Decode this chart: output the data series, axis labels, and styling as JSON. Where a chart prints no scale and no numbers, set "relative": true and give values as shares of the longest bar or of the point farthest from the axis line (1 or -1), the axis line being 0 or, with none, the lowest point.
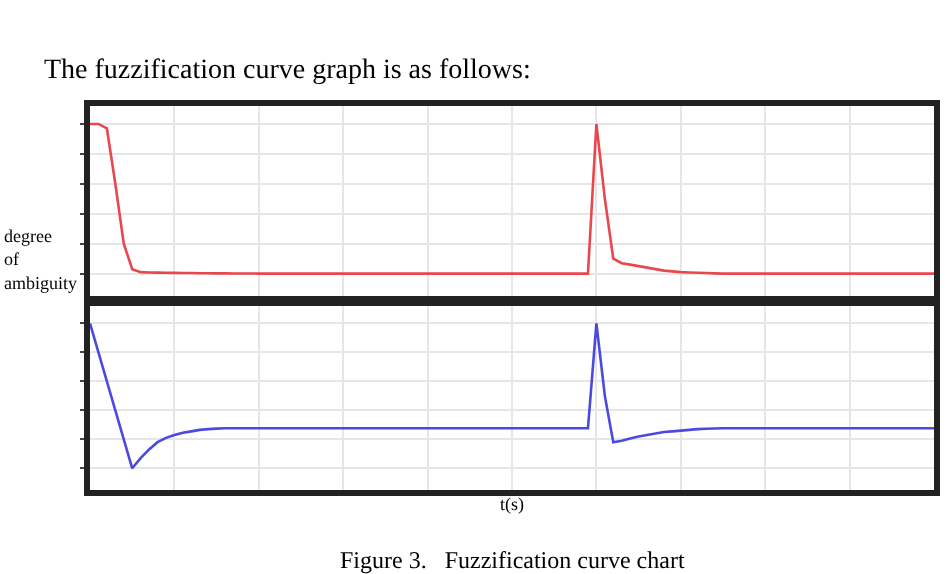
{
  "chart_data": [
    {
      "type": "line",
      "title": "The fuzzification curve graph is as follows:",
      "ylabel": "degree\nof\nambiguity",
      "relative": true,
      "grid": true,
      "tick_labels": false,
      "categories": [
        null,
        null,
        null,
        null,
        null,
        null,
        null,
        null,
        null,
        null,
        null,
        null,
        null,
        null,
        null,
        null,
        null,
        null,
        null,
        null,
        null,
        null,
        null,
        null,
        null,
        null,
        null,
        null,
        null,
        null,
        null,
        null,
        null,
        null,
        null,
        null,
        null,
        null,
        null,
        null,
        null,
        null,
        null,
        null,
        null,
        null,
        null,
        null,
        null,
        null,
        null,
        null,
        null,
        null,
        null,
        null,
        null,
        null,
        null,
        null,
        null,
        null,
        null,
        null,
        null,
        null,
        null,
        null,
        null,
        null,
        null,
        null,
        null,
        null,
        null,
        null,
        null,
        null,
        null,
        null,
        null,
        null,
        null,
        null,
        null,
        null,
        null,
        null,
        null,
        null,
        null,
        null,
        null,
        null,
        null,
        null,
        null,
        null,
        null,
        null,
        null
      ],
      "series": [
        {
          "color": "#e8474f",
          "values": [
            1,
            1,
            0.97,
            0.6,
            0.2,
            0.03,
            0.01,
            0.008,
            0.007,
            0.006,
            0.005,
            0.004,
            0.004,
            0.003,
            0.003,
            0.002,
            0.002,
            0.001,
            0.001,
            0.001,
            0,
            0,
            0,
            0,
            0,
            0,
            0,
            0,
            0,
            0,
            0,
            0,
            0,
            0,
            0,
            0,
            0,
            0,
            0,
            0,
            0,
            0,
            0,
            0,
            0,
            0,
            0,
            0,
            0,
            0,
            0,
            0,
            0,
            0,
            0,
            0,
            0,
            0,
            0,
            0,
            1,
            0.5,
            0.1,
            0.07,
            0.06,
            0.05,
            0.04,
            0.03,
            0.02,
            0.015,
            0.01,
            0.008,
            0.006,
            0.004,
            0.002,
            0,
            0,
            0,
            0,
            0,
            0,
            0,
            0,
            0,
            0,
            0,
            0,
            0,
            0,
            0,
            0,
            0,
            0,
            0,
            0,
            0,
            0,
            0,
            0,
            0,
            0
          ]
        }
      ]
    },
    {
      "type": "line",
      "xlabel": "t(s)",
      "relative": true,
      "grid": true,
      "tick_labels": false,
      "categories": [
        null,
        null,
        null,
        null,
        null,
        null,
        null,
        null,
        null,
        null,
        null,
        null,
        null,
        null,
        null,
        null,
        null,
        null,
        null,
        null,
        null,
        null,
        null,
        null,
        null,
        null,
        null,
        null,
        null,
        null,
        null,
        null,
        null,
        null,
        null,
        null,
        null,
        null,
        null,
        null,
        null,
        null,
        null,
        null,
        null,
        null,
        null,
        null,
        null,
        null,
        null,
        null,
        null,
        null,
        null,
        null,
        null,
        null,
        null,
        null,
        null,
        null,
        null,
        null,
        null,
        null,
        null,
        null,
        null,
        null,
        null,
        null,
        null,
        null,
        null,
        null,
        null,
        null,
        null,
        null,
        null,
        null,
        null,
        null,
        null,
        null,
        null,
        null,
        null,
        null,
        null,
        null,
        null,
        null,
        null,
        null,
        null,
        null,
        null,
        null,
        null
      ],
      "annotations": [
        "Figure 3.   Fuzzification curve chart"
      ],
      "series": [
        {
          "color": "#4a4ae0",
          "values": [
            1,
            0.8,
            0.6,
            0.4,
            0.2,
            0,
            0.07,
            0.13,
            0.18,
            0.21,
            0.23,
            0.245,
            0.255,
            0.265,
            0.27,
            0.274,
            0.276,
            0.276,
            0.276,
            0.276,
            0.276,
            0.276,
            0.276,
            0.276,
            0.276,
            0.276,
            0.276,
            0.276,
            0.276,
            0.276,
            0.276,
            0.276,
            0.276,
            0.276,
            0.276,
            0.276,
            0.276,
            0.276,
            0.276,
            0.276,
            0.276,
            0.276,
            0.276,
            0.276,
            0.276,
            0.276,
            0.276,
            0.276,
            0.276,
            0.276,
            0.276,
            0.276,
            0.276,
            0.276,
            0.276,
            0.276,
            0.276,
            0.276,
            0.276,
            0.276,
            1,
            0.5,
            0.18,
            0.19,
            0.205,
            0.22,
            0.23,
            0.24,
            0.25,
            0.255,
            0.26,
            0.265,
            0.27,
            0.273,
            0.275,
            0.276,
            0.276,
            0.276,
            0.276,
            0.276,
            0.276,
            0.276,
            0.276,
            0.276,
            0.276,
            0.276,
            0.276,
            0.276,
            0.276,
            0.276,
            0.276,
            0.276,
            0.276,
            0.276,
            0.276,
            0.276,
            0.276,
            0.276,
            0.276,
            0.276,
            0.276
          ]
        }
      ]
    }
  ]
}
